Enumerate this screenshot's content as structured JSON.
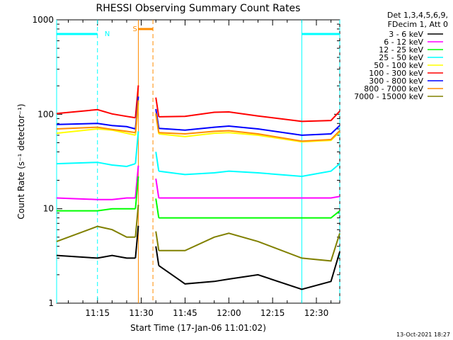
{
  "chart_data": {
    "type": "line",
    "title": "RHESSI Observing Summary Count Rates",
    "xlabel": "Start Time (17-Jan-06 11:01:02)",
    "ylabel": "Count Rate (s⁻¹ detector⁻¹)",
    "ylog": true,
    "ylim": [
      1,
      1000
    ],
    "xlim": [
      "11:01",
      "12:38"
    ],
    "x_ticks": [
      "11:15",
      "11:30",
      "11:45",
      "12:00",
      "12:15",
      "12:30"
    ],
    "y_ticks": [
      "1",
      "10",
      "100",
      "1000"
    ],
    "legend_header": [
      "Det 1,3,4,5,6,9,",
      "FDecim 1, Att 0"
    ],
    "legend_position": "right",
    "timestamp": "13-Oct-2021 18:27",
    "x": [
      "11:01",
      "11:15",
      "11:20",
      "11:25",
      "11:28",
      "11:30",
      "11:36",
      "11:45",
      "11:55",
      "12:00",
      "12:10",
      "12:25",
      "12:35",
      "12:38"
    ],
    "series": [
      {
        "name": "3 - 6 keV",
        "color": "#000000",
        "values": [
          3.2,
          3.0,
          3.2,
          3.0,
          3.0,
          null,
          2.5,
          1.6,
          1.7,
          1.8,
          2.0,
          1.4,
          1.7,
          3.5
        ]
      },
      {
        "name": "6 - 12 keV",
        "color": "#ff00ff",
        "values": [
          13,
          12.5,
          12.5,
          13,
          13,
          null,
          13,
          13,
          13,
          13,
          13,
          13,
          13,
          13.5
        ]
      },
      {
        "name": "12 - 25 keV",
        "color": "#00ff00",
        "values": [
          9.5,
          9.5,
          10,
          10,
          10,
          null,
          8,
          8,
          8,
          8,
          8,
          8,
          8,
          9.5
        ]
      },
      {
        "name": "25 - 50 keV",
        "color": "#00ffff",
        "values": [
          30,
          31,
          29,
          28,
          30,
          null,
          25,
          23,
          24,
          25,
          24,
          22,
          25,
          30
        ]
      },
      {
        "name": "50 - 100 keV",
        "color": "#ffff00",
        "values": [
          63,
          70,
          68,
          63,
          60,
          null,
          62,
          58,
          63,
          64,
          60,
          51,
          53,
          65
        ]
      },
      {
        "name": "100 - 300 keV",
        "color": "#ff0000",
        "values": [
          102,
          112,
          101,
          95,
          92,
          null,
          94,
          95,
          105,
          106,
          96,
          84,
          86,
          108
        ]
      },
      {
        "name": "300 - 800 keV",
        "color": "#0000ff",
        "values": [
          78,
          80,
          76,
          74,
          70,
          null,
          71,
          68,
          73,
          75,
          70,
          60,
          62,
          76
        ]
      },
      {
        "name": "800 - 7000 keV",
        "color": "#ff8c00",
        "values": [
          70,
          73,
          69,
          66,
          64,
          null,
          64,
          62,
          66,
          67,
          62,
          52,
          54,
          67
        ]
      },
      {
        "name": "7000 - 15000 keV",
        "color": "#808000",
        "values": [
          4.5,
          6.5,
          6.0,
          5.0,
          5.0,
          null,
          3.6,
          3.6,
          5.0,
          5.5,
          4.5,
          3.0,
          2.8,
          5.5
        ]
      }
    ],
    "annotations": [
      {
        "label": "N",
        "color": "#00ffff",
        "segments": [
          [
            "11:01",
            "11:15"
          ],
          [
            "12:25",
            "12:38"
          ]
        ]
      },
      {
        "label": "S",
        "color": "#ff8c00",
        "segments": [
          [
            "11:29",
            "11:34"
          ]
        ]
      }
    ]
  }
}
